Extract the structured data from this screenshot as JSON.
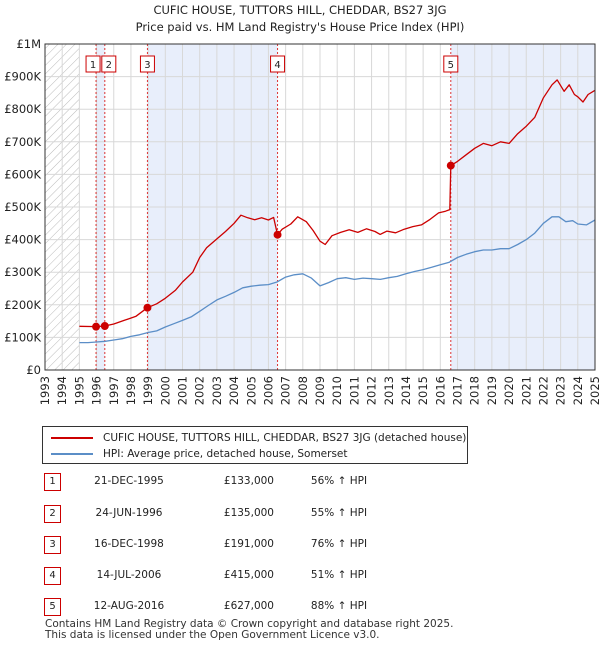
{
  "chart_data": {
    "type": "line",
    "title": "CUFIC HOUSE, TUTTORS HILL, CHEDDAR, BS27 3JG",
    "subtitle": "Price paid vs. HM Land Registry's House Price Index (HPI)",
    "xlim": [
      1993,
      2025
    ],
    "ylim": [
      0,
      1000000
    ],
    "x_ticks": [
      1993,
      1994,
      1995,
      1996,
      1997,
      1998,
      1999,
      2000,
      2001,
      2002,
      2003,
      2004,
      2005,
      2006,
      2007,
      2008,
      2009,
      2010,
      2011,
      2012,
      2013,
      2014,
      2015,
      2016,
      2017,
      2018,
      2019,
      2020,
      2021,
      2022,
      2023,
      2024,
      2025
    ],
    "y_ticks": [
      {
        "value": 0,
        "label": "£0"
      },
      {
        "value": 100000,
        "label": "£100K"
      },
      {
        "value": 200000,
        "label": "£200K"
      },
      {
        "value": 300000,
        "label": "£300K"
      },
      {
        "value": 400000,
        "label": "£400K"
      },
      {
        "value": 500000,
        "label": "£500K"
      },
      {
        "value": 600000,
        "label": "£600K"
      },
      {
        "value": 700000,
        "label": "£700K"
      },
      {
        "value": 800000,
        "label": "£800K"
      },
      {
        "value": 900000,
        "label": "£900K"
      },
      {
        "value": 1000000,
        "label": "£1M"
      }
    ],
    "hatched_range_before": 1995,
    "series": [
      {
        "name": "CUFIC HOUSE, TUTTORS HILL, CHEDDAR, BS27 3JG (detached house)",
        "color": "#cc0000",
        "points": [
          [
            1995.0,
            134000
          ],
          [
            1995.97,
            133000
          ],
          [
            1996.48,
            135000
          ],
          [
            1997.0,
            141000
          ],
          [
            1997.6,
            152000
          ],
          [
            1998.3,
            165000
          ],
          [
            1998.96,
            191000
          ],
          [
            1999.5,
            203000
          ],
          [
            2000.0,
            220000
          ],
          [
            2000.6,
            245000
          ],
          [
            2001.0,
            270000
          ],
          [
            2001.6,
            300000
          ],
          [
            2002.0,
            345000
          ],
          [
            2002.4,
            375000
          ],
          [
            2003.0,
            402000
          ],
          [
            2003.5,
            425000
          ],
          [
            2004.0,
            450000
          ],
          [
            2004.4,
            475000
          ],
          [
            2004.8,
            467000
          ],
          [
            2005.2,
            461000
          ],
          [
            2005.6,
            467000
          ],
          [
            2006.0,
            460000
          ],
          [
            2006.3,
            468000
          ],
          [
            2006.53,
            415000
          ],
          [
            2006.8,
            432000
          ],
          [
            2007.3,
            448000
          ],
          [
            2007.7,
            470000
          ],
          [
            2008.2,
            455000
          ],
          [
            2008.6,
            428000
          ],
          [
            2009.0,
            395000
          ],
          [
            2009.3,
            385000
          ],
          [
            2009.7,
            412000
          ],
          [
            2010.2,
            422000
          ],
          [
            2010.7,
            430000
          ],
          [
            2011.2,
            422000
          ],
          [
            2011.7,
            433000
          ],
          [
            2012.2,
            425000
          ],
          [
            2012.5,
            416000
          ],
          [
            2012.9,
            426000
          ],
          [
            2013.4,
            421000
          ],
          [
            2013.9,
            432000
          ],
          [
            2014.4,
            440000
          ],
          [
            2014.9,
            445000
          ],
          [
            2015.4,
            462000
          ],
          [
            2015.9,
            482000
          ],
          [
            2016.3,
            487000
          ],
          [
            2016.55,
            492000
          ],
          [
            2016.61,
            627000
          ],
          [
            2017.0,
            640000
          ],
          [
            2017.5,
            660000
          ],
          [
            2018.0,
            680000
          ],
          [
            2018.5,
            695000
          ],
          [
            2019.0,
            688000
          ],
          [
            2019.5,
            700000
          ],
          [
            2020.0,
            695000
          ],
          [
            2020.5,
            725000
          ],
          [
            2021.0,
            748000
          ],
          [
            2021.5,
            775000
          ],
          [
            2022.0,
            835000
          ],
          [
            2022.5,
            875000
          ],
          [
            2022.8,
            890000
          ],
          [
            2023.2,
            855000
          ],
          [
            2023.5,
            875000
          ],
          [
            2023.8,
            845000
          ],
          [
            2024.0,
            838000
          ],
          [
            2024.3,
            822000
          ],
          [
            2024.6,
            845000
          ],
          [
            2025.0,
            858000
          ]
        ]
      },
      {
        "name": "HPI: Average price, detached house, Somerset",
        "color": "#5b8ec7",
        "points": [
          [
            1995.0,
            84000
          ],
          [
            1995.5,
            84000
          ],
          [
            1996.0,
            86000
          ],
          [
            1996.5,
            88000
          ],
          [
            1997.0,
            92000
          ],
          [
            1997.5,
            96000
          ],
          [
            1998.0,
            103000
          ],
          [
            1998.5,
            108000
          ],
          [
            1999.0,
            115000
          ],
          [
            1999.5,
            120000
          ],
          [
            2000.0,
            132000
          ],
          [
            2000.5,
            142000
          ],
          [
            2001.0,
            152000
          ],
          [
            2001.5,
            163000
          ],
          [
            2002.0,
            180000
          ],
          [
            2002.5,
            198000
          ],
          [
            2003.0,
            215000
          ],
          [
            2003.5,
            226000
          ],
          [
            2004.0,
            238000
          ],
          [
            2004.5,
            252000
          ],
          [
            2005.0,
            257000
          ],
          [
            2005.5,
            260000
          ],
          [
            2006.0,
            262000
          ],
          [
            2006.5,
            270000
          ],
          [
            2007.0,
            285000
          ],
          [
            2007.5,
            292000
          ],
          [
            2008.0,
            295000
          ],
          [
            2008.5,
            282000
          ],
          [
            2009.0,
            258000
          ],
          [
            2009.5,
            268000
          ],
          [
            2010.0,
            280000
          ],
          [
            2010.5,
            283000
          ],
          [
            2011.0,
            278000
          ],
          [
            2011.5,
            282000
          ],
          [
            2012.0,
            280000
          ],
          [
            2012.5,
            278000
          ],
          [
            2013.0,
            283000
          ],
          [
            2013.5,
            287000
          ],
          [
            2014.0,
            295000
          ],
          [
            2014.5,
            302000
          ],
          [
            2015.0,
            308000
          ],
          [
            2015.5,
            315000
          ],
          [
            2016.0,
            323000
          ],
          [
            2016.5,
            330000
          ],
          [
            2017.0,
            345000
          ],
          [
            2017.5,
            355000
          ],
          [
            2018.0,
            363000
          ],
          [
            2018.5,
            368000
          ],
          [
            2019.0,
            368000
          ],
          [
            2019.5,
            372000
          ],
          [
            2020.0,
            372000
          ],
          [
            2020.5,
            385000
          ],
          [
            2021.0,
            400000
          ],
          [
            2021.5,
            420000
          ],
          [
            2022.0,
            450000
          ],
          [
            2022.5,
            470000
          ],
          [
            2022.9,
            470000
          ],
          [
            2023.3,
            455000
          ],
          [
            2023.7,
            458000
          ],
          [
            2024.0,
            448000
          ],
          [
            2024.5,
            445000
          ],
          [
            2025.0,
            460000
          ]
        ]
      }
    ],
    "sales": [
      {
        "num": "1",
        "year": 1995.97,
        "price": 133000
      },
      {
        "num": "2",
        "year": 1996.48,
        "price": 135000
      },
      {
        "num": "3",
        "year": 1998.96,
        "price": 191000
      },
      {
        "num": "4",
        "year": 2006.53,
        "price": 415000
      },
      {
        "num": "5",
        "year": 2016.61,
        "price": 627000
      }
    ]
  },
  "legend": {
    "property_label": "CUFIC HOUSE, TUTTORS HILL, CHEDDAR, BS27 3JG (detached house)",
    "hpi_label": "HPI: Average price, detached house, Somerset",
    "property_color": "#cc0000",
    "hpi_color": "#5b8ec7"
  },
  "sales_table": [
    {
      "num": "1",
      "date": "21-DEC-1995",
      "price": "£133,000",
      "hpi": "56% ↑ HPI"
    },
    {
      "num": "2",
      "date": "24-JUN-1996",
      "price": "£135,000",
      "hpi": "55% ↑ HPI"
    },
    {
      "num": "3",
      "date": "16-DEC-1998",
      "price": "£191,000",
      "hpi": "76% ↑ HPI"
    },
    {
      "num": "4",
      "date": "14-JUL-2006",
      "price": "£415,000",
      "hpi": "51% ↑ HPI"
    },
    {
      "num": "5",
      "date": "12-AUG-2016",
      "price": "£627,000",
      "hpi": "88% ↑ HPI"
    }
  ],
  "footer": {
    "line1": "Contains HM Land Registry data © Crown copyright and database right 2025.",
    "line2": "This data is licensed under the Open Government Licence v3.0."
  }
}
